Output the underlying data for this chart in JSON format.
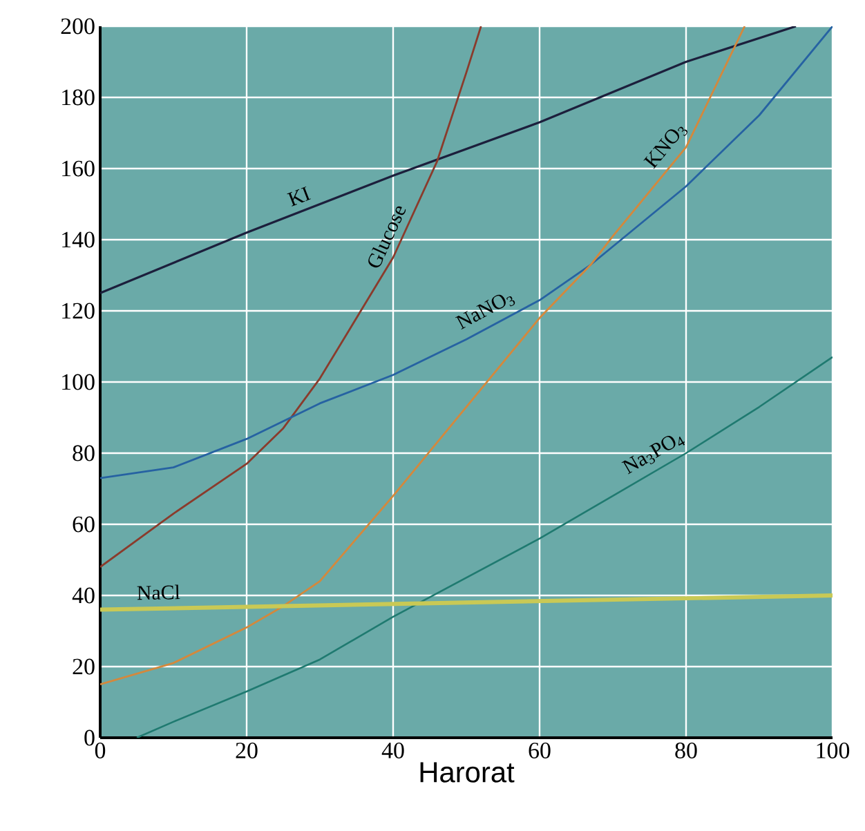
{
  "chart_data": {
    "type": "line",
    "xlabel": "Harorat",
    "series": [
      {
        "name": "KI",
        "color": "#1c1f3c",
        "x": [
          0,
          20,
          40,
          60,
          80,
          95
        ],
        "values": [
          125,
          142,
          158,
          173,
          190,
          200
        ]
      },
      {
        "name": "Glucose",
        "color": "#8a3b2c",
        "x": [
          0,
          10,
          20,
          25,
          30,
          40,
          46,
          50,
          52
        ],
        "values": [
          48,
          63,
          77,
          87,
          101,
          135,
          162,
          187,
          200
        ]
      },
      {
        "name": "NaNO$_{3}$",
        "color": "#2662a2",
        "x": [
          0,
          10,
          20,
          30,
          40,
          50,
          60,
          67,
          80,
          90,
          100
        ],
        "values": [
          73,
          76,
          84,
          94,
          102,
          112,
          123,
          133,
          155,
          175,
          200
        ]
      },
      {
        "name": "KNO$_{3}$",
        "color": "#d4883c",
        "x": [
          0,
          10,
          20,
          25,
          30,
          40,
          50,
          60,
          67,
          70,
          80,
          88
        ],
        "values": [
          15,
          21,
          31,
          37,
          44,
          68,
          93,
          118,
          133,
          141,
          166,
          200
        ]
      },
      {
        "name": "Na$_{3}$PO$_{4}$",
        "color": "#1f7a70",
        "x": [
          5,
          10,
          20,
          30,
          40,
          50,
          60,
          70,
          80,
          90,
          100
        ],
        "values": [
          0,
          4.5,
          13,
          22,
          34,
          45,
          56,
          68,
          80,
          93,
          107
        ]
      },
      {
        "name": "NaCl",
        "color": "#c9c955",
        "x": [
          0,
          100
        ],
        "values": [
          36,
          40
        ]
      }
    ],
    "xlim": [
      0,
      100
    ],
    "ylim": [
      0,
      200
    ],
    "xticks": [
      0,
      20,
      40,
      60,
      80,
      100
    ],
    "yticks": [
      0,
      20,
      40,
      60,
      80,
      100,
      120,
      140,
      160,
      180,
      200
    ],
    "grid": true,
    "marker": "none",
    "line_style": "solid"
  }
}
